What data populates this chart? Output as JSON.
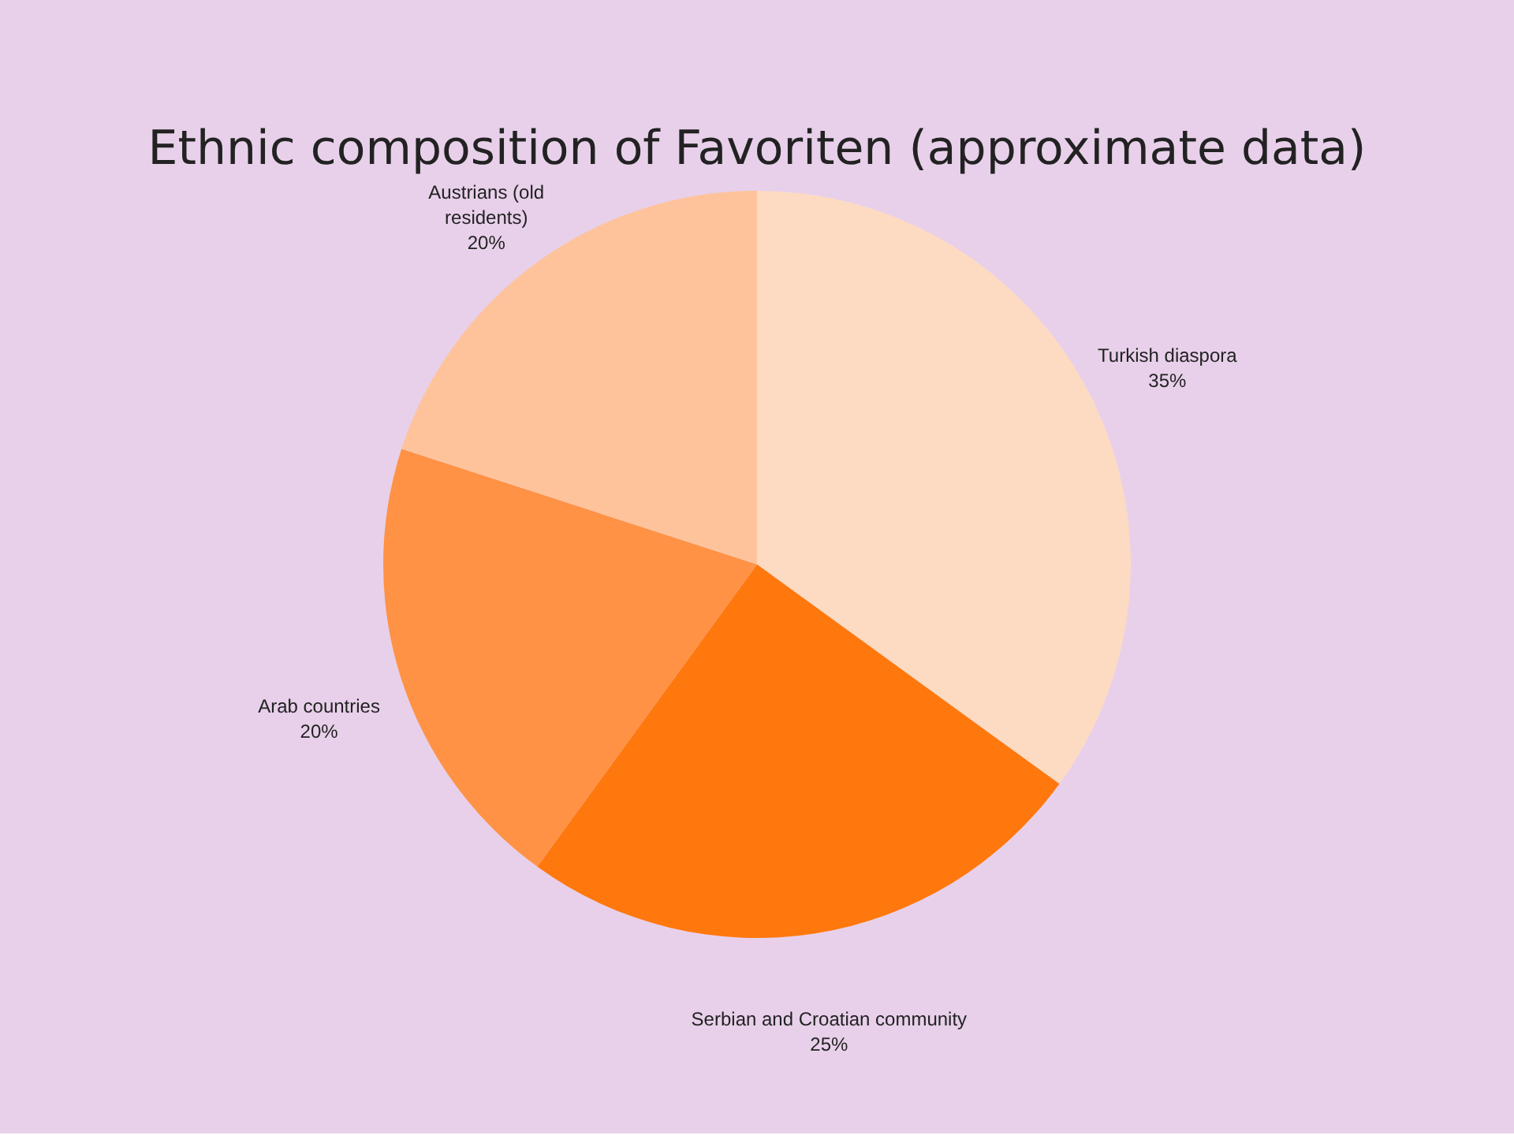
{
  "chart_data": {
    "type": "pie",
    "title": "Ethnic composition of Favoriten (approximate data)",
    "categories": [
      "Turkish diaspora",
      "Serbian and Croatian community",
      "Arab countries",
      "Austrians (old residents)"
    ],
    "values": [
      35,
      25,
      20,
      20
    ],
    "colors": [
      "#fddbc2",
      "#ff780d",
      "#ff9245",
      "#ffc39b"
    ],
    "value_labels": [
      "35%",
      "25%",
      "20%",
      "20%"
    ],
    "legend": false
  }
}
